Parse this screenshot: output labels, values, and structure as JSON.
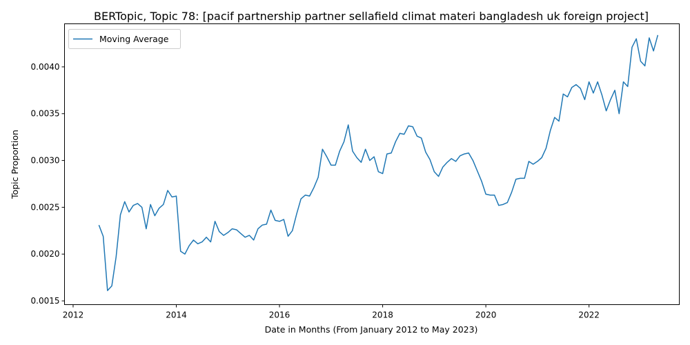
{
  "chart_data": {
    "type": "line",
    "title": "BERTopic, Topic 78: [pacif partnership partner sellafield climat materi bangladesh uk foreign project]",
    "xlabel": "Date in Months (From January 2012 to May 2023)",
    "ylabel": "Topic Proportion",
    "xlim": [
      "2011-11",
      "2023-10"
    ],
    "ylim": [
      0.00146,
      0.00446
    ],
    "x_ticks": [
      "2012",
      "2014",
      "2016",
      "2018",
      "2020",
      "2022"
    ],
    "y_ticks": [
      "0.0015",
      "0.0020",
      "0.0025",
      "0.0030",
      "0.0035",
      "0.0040"
    ],
    "grid": false,
    "legend_position": "top-left",
    "series_color": "#1f77b4",
    "series": [
      {
        "name": "Moving Average",
        "x": [
          "2012-07",
          "2012-08",
          "2012-09",
          "2012-10",
          "2012-11",
          "2012-12",
          "2013-01",
          "2013-02",
          "2013-03",
          "2013-04",
          "2013-05",
          "2013-06",
          "2013-07",
          "2013-08",
          "2013-09",
          "2013-10",
          "2013-11",
          "2013-12",
          "2014-01",
          "2014-02",
          "2014-03",
          "2014-04",
          "2014-05",
          "2014-06",
          "2014-07",
          "2014-08",
          "2014-09",
          "2014-10",
          "2014-11",
          "2014-12",
          "2015-01",
          "2015-02",
          "2015-03",
          "2015-04",
          "2015-05",
          "2015-06",
          "2015-07",
          "2015-08",
          "2015-09",
          "2015-10",
          "2015-11",
          "2015-12",
          "2016-01",
          "2016-02",
          "2016-03",
          "2016-04",
          "2016-05",
          "2016-06",
          "2016-07",
          "2016-08",
          "2016-09",
          "2016-10",
          "2016-11",
          "2016-12",
          "2017-01",
          "2017-02",
          "2017-03",
          "2017-04",
          "2017-05",
          "2017-06",
          "2017-07",
          "2017-08",
          "2017-09",
          "2017-10",
          "2017-11",
          "2017-12",
          "2018-01",
          "2018-02",
          "2018-03",
          "2018-04",
          "2018-05",
          "2018-06",
          "2018-07",
          "2018-08",
          "2018-09",
          "2018-10",
          "2018-11",
          "2018-12",
          "2019-01",
          "2019-02",
          "2019-03",
          "2019-04",
          "2019-05",
          "2019-06",
          "2019-07",
          "2019-08",
          "2019-09",
          "2019-10",
          "2019-11",
          "2019-12",
          "2020-01",
          "2020-02",
          "2020-03",
          "2020-04",
          "2020-05",
          "2020-06",
          "2020-07",
          "2020-08",
          "2020-09",
          "2020-10",
          "2020-11",
          "2020-12",
          "2021-01",
          "2021-02",
          "2021-03",
          "2021-04",
          "2021-05",
          "2021-06",
          "2021-07",
          "2021-08",
          "2021-09",
          "2021-10",
          "2021-11",
          "2021-12",
          "2022-01",
          "2022-02",
          "2022-03",
          "2022-04",
          "2022-05",
          "2022-06",
          "2022-07",
          "2022-08",
          "2022-09",
          "2022-10",
          "2022-11",
          "2022-12",
          "2023-01",
          "2023-02",
          "2023-03",
          "2023-04",
          "2023-05"
        ],
        "values": [
          0.00231,
          0.00219,
          0.00161,
          0.00166,
          0.00197,
          0.00242,
          0.00256,
          0.00245,
          0.00252,
          0.00254,
          0.0025,
          0.00227,
          0.00253,
          0.00241,
          0.00249,
          0.00253,
          0.00268,
          0.00261,
          0.00262,
          0.00203,
          0.002,
          0.00209,
          0.00215,
          0.00211,
          0.00213,
          0.00218,
          0.00213,
          0.00235,
          0.00224,
          0.0022,
          0.00223,
          0.00227,
          0.00226,
          0.00222,
          0.00218,
          0.0022,
          0.00215,
          0.00227,
          0.00231,
          0.00232,
          0.00247,
          0.00236,
          0.00235,
          0.00237,
          0.00219,
          0.00225,
          0.00243,
          0.00259,
          0.00263,
          0.00262,
          0.00271,
          0.00282,
          0.00312,
          0.00304,
          0.00295,
          0.00295,
          0.0031,
          0.0032,
          0.00338,
          0.0031,
          0.00303,
          0.00298,
          0.00312,
          0.003,
          0.00304,
          0.00288,
          0.00286,
          0.00307,
          0.00308,
          0.0032,
          0.00329,
          0.00328,
          0.00337,
          0.00336,
          0.00326,
          0.00324,
          0.00309,
          0.00301,
          0.00288,
          0.00283,
          0.00293,
          0.00298,
          0.00302,
          0.00299,
          0.00305,
          0.00307,
          0.00308,
          0.003,
          0.00289,
          0.00278,
          0.00264,
          0.00263,
          0.00263,
          0.00252,
          0.00253,
          0.00255,
          0.00266,
          0.0028,
          0.00281,
          0.00281,
          0.00299,
          0.00296,
          0.00299,
          0.00303,
          0.00313,
          0.00332,
          0.00346,
          0.00342,
          0.00371,
          0.00368,
          0.00378,
          0.00381,
          0.00377,
          0.00365,
          0.00384,
          0.00372,
          0.00384,
          0.0037,
          0.00353,
          0.00365,
          0.00375,
          0.0035,
          0.00384,
          0.00379,
          0.00421,
          0.0043,
          0.00406,
          0.00401,
          0.00431,
          0.00417,
          0.00434
        ]
      }
    ]
  }
}
